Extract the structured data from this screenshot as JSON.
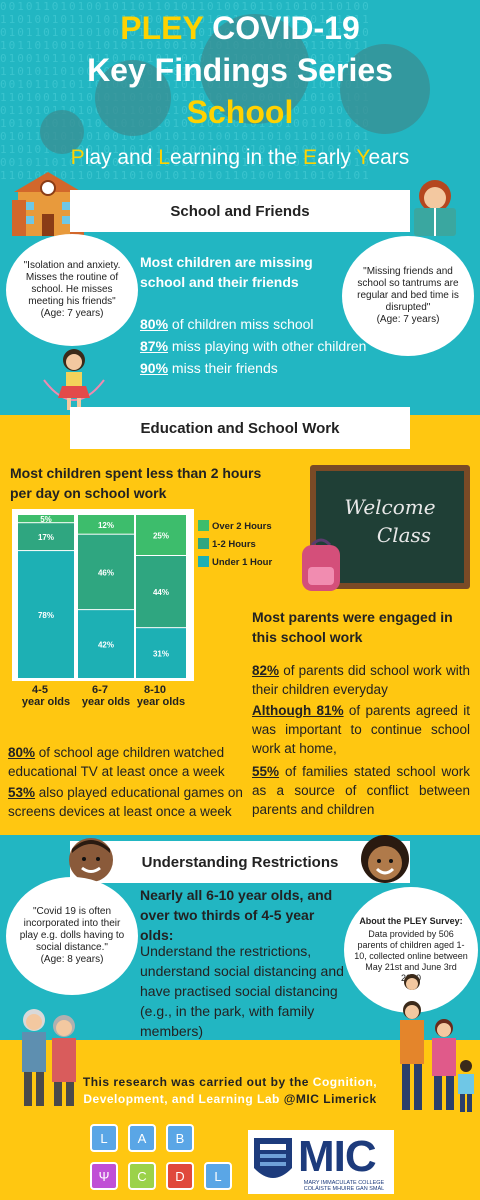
{
  "header": {
    "title_pley": "PLEY",
    "title_covid": "COVID-19",
    "title_series": "Key Findings Series",
    "title_topic": "School",
    "subtitle_parts": [
      "P",
      "lay and ",
      "L",
      "earning in the ",
      "E",
      "arly ",
      "Y",
      "ears"
    ],
    "binary_text": "0010110101001011011010110100101101010110100\n1101001011010110100101101011010010110101011\n0101101011010010110101101001011010101101010\n1011010010110101101001011010110100101101011\n0100101101011010010110101101001011010101101\n1101011010010110101101001011010110100101101\n0010110101101001011010110100101101011010010\n1101001011010110100101101011010010110101101\n0110101101001011010110100101101011010010110\n1010110100101101011010010110101101001011010\n0101101011010010110101101001011010110100101\n1101011010010110101101001011010110100101101\n0010110101101001011010110100101101011010010\n1101001011010110100101101011010010110101101"
  },
  "school_friends": {
    "banner": "School and Friends",
    "quote_left": "\"Isolation and anxiety. Misses the routine of school. He misses meeting his friends\"",
    "quote_left_age": "(Age: 7 years)",
    "quote_right": "\"Missing friends and school so tantrums are regular and bed time is disrupted\"",
    "quote_right_age": "(Age: 7 years)",
    "heading": "Most children are missing school and their friends",
    "stats": [
      {
        "pct": "80%",
        "text": " of children miss school"
      },
      {
        "pct": "87%",
        "text": " miss playing with other children"
      },
      {
        "pct": "90%",
        "text": " miss their friends"
      }
    ]
  },
  "education": {
    "banner": "Education and School Work",
    "heading": "Most children spent less than 2 hours per day on school work",
    "board_line1": "Welcome",
    "board_line2": "Class",
    "parents_heading": "Most parents were engaged in this school work",
    "p1_pct": "82%",
    "p1_text": " of parents did school work with their children everyday",
    "p2_pct": "Although 81%",
    "p2_text": " of parents agreed it was important to continue school work at home,",
    "p3_pct": "55%",
    "p3_text": " of families stated school work as a source of conflict between parents and children",
    "b1_pct": "80%",
    "b1_text": " of school age children watched educational TV at least once a week",
    "b2_pct": "53%",
    "b2_text": " also played educational games on screens devices at least once a week"
  },
  "chart_data": {
    "type": "bar",
    "stacked": true,
    "normalized": true,
    "categories": [
      "4-5 year olds",
      "6-7 year olds",
      "8-10 year olds"
    ],
    "category_lines": [
      [
        "4-5",
        "year olds"
      ],
      [
        "6-7",
        "year olds"
      ],
      [
        "8-10",
        "year olds"
      ]
    ],
    "series": [
      {
        "name": "Under 1 Hour",
        "values": [
          78,
          42,
          31
        ],
        "labels": [
          "78%",
          "42%",
          "31%"
        ],
        "color": "#1db0b4"
      },
      {
        "name": "1-2 Hours",
        "values": [
          17,
          46,
          44
        ],
        "labels": [
          "17%",
          "46%",
          "44%"
        ],
        "color": "#2fa680"
      },
      {
        "name": "Over 2 Hours",
        "values": [
          5,
          12,
          25
        ],
        "labels": [
          "5%",
          "12%",
          "25%"
        ],
        "color": "#3dbd6c"
      }
    ],
    "legend_order": [
      "Over 2 Hours",
      "1-2 Hours",
      "Under 1 Hour"
    ],
    "legend": "right",
    "ylim": [
      0,
      100
    ]
  },
  "restrictions": {
    "banner": "Understanding Restrictions",
    "quote": "\"Covid 19 is often incorporated into their play e.g. dolls having to social distance.\"",
    "quote_age": "(Age: 8 years)",
    "heading": "Nearly all 6-10 year olds, and over two thirds of 4-5 year olds:",
    "body": "Understand the restrictions, understand social distancing and have practised social distancing (e.g., in the park, with family members)",
    "survey_title": "About the PLEY Survey:",
    "survey_text": "Data provided by 506 parents of children aged 1-10, collected online between May 21st and June 3rd 2020"
  },
  "footer": {
    "text_a": "This research was carried out by the ",
    "text_b": "Cognition, Development, and Learning Lab",
    "text_c": " @MIC Limerick",
    "lab_letters": [
      "L",
      "A",
      "B",
      "Ψ",
      "C",
      "D",
      "L"
    ],
    "lab_colors": [
      "#5aa6e6",
      "#5aa6e6",
      "#5aa6e6",
      "#c04fd6",
      "#9bd24a",
      "#e0483c",
      "#5aa6e6"
    ],
    "mic_letters": "MIC",
    "mic_sub1": "MARY IMMACULATE COLLEGE",
    "mic_sub2": "COLÁISTE MHUIRE GAN SMÁL"
  },
  "colors": {
    "teal": "#22b6c2",
    "yellow": "#ffc711",
    "title_yellow": "#ffd200"
  }
}
